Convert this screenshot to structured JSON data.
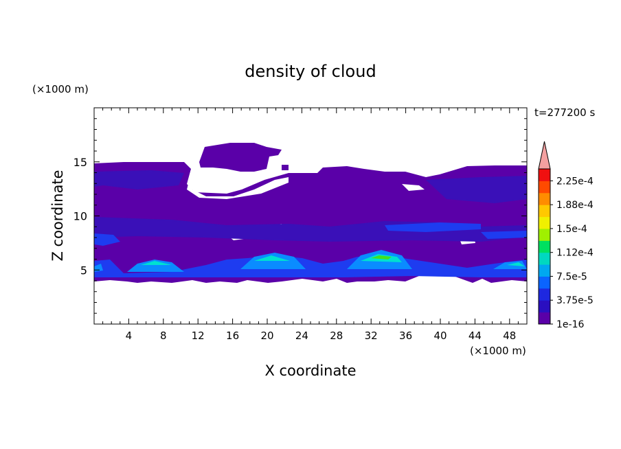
{
  "chart_data": {
    "type": "heatmap",
    "title": "density of cloud",
    "xlabel": "X coordinate",
    "ylabel": "Z coordinate",
    "x_unit": "(×1000 m)",
    "y_unit": "(×1000 m)",
    "time_label": "t=277200 s",
    "xlim": [
      0,
      50
    ],
    "ylim": [
      0,
      20
    ],
    "xticks": [
      "4",
      "8",
      "12",
      "16",
      "20",
      "24",
      "28",
      "32",
      "36",
      "40",
      "44",
      "48"
    ],
    "yticks": [
      "5",
      "10",
      "15"
    ],
    "colorbar": {
      "labels": [
        "1e-16",
        "3.75e-5",
        "7.5e-5",
        "1.12e-4",
        "1.5e-4",
        "1.88e-4",
        "2.25e-4"
      ],
      "colors": [
        "#5a00a8",
        "#2a0fc0",
        "#1e28e0",
        "#0a64ff",
        "#00a8f0",
        "#00d8c0",
        "#00e060",
        "#a0f000",
        "#f0f000",
        "#ffc800",
        "#ff8c00",
        "#ff4a00",
        "#f01010"
      ],
      "extend_color": "#f4a0a0"
    },
    "colors": {
      "cloud_base": "#5a00a8",
      "cloud_mid": "#3a10b8",
      "band_blue": "#1e3cf0",
      "core_light": "#0a8cff",
      "core_cyan": "#00e0d0",
      "core_green": "#40e020"
    }
  }
}
